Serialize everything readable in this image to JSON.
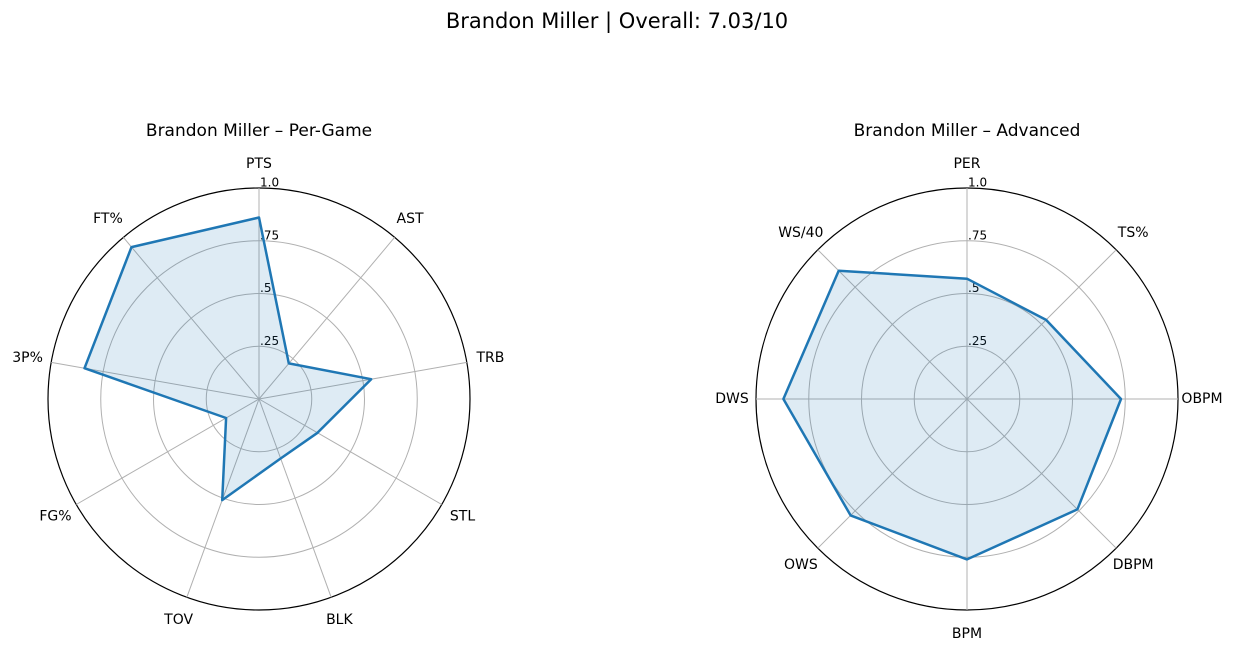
{
  "title": "Brandon Miller | Overall: 7.03/10",
  "chart_data": [
    {
      "type": "radar",
      "title": "Brandon Miller – Per-Game",
      "categories": [
        "PTS",
        "AST",
        "TRB",
        "STL",
        "BLK",
        "TOV",
        "FG%",
        "3P%",
        "FT%"
      ],
      "values": [
        0.86,
        0.22,
        0.54,
        0.32,
        0.3,
        0.51,
        0.18,
        0.84,
        0.94
      ],
      "color": "#1f77b4",
      "ylim": [
        0,
        1
      ],
      "yticks": [
        {
          "value": 0.25,
          "label": ".25"
        },
        {
          "value": 0.5,
          "label": ".5"
        },
        {
          "value": 0.75,
          "label": ".75"
        },
        {
          "value": 1.0,
          "label": "1.0"
        }
      ],
      "grid": true
    },
    {
      "type": "radar",
      "title": "Brandon Miller – Advanced",
      "categories": [
        "PER",
        "TS%",
        "OBPM",
        "DBPM",
        "BPM",
        "OWS",
        "DWS",
        "WS/40"
      ],
      "values": [
        0.57,
        0.53,
        0.73,
        0.74,
        0.76,
        0.78,
        0.87,
        0.86
      ],
      "color": "#1f77b4",
      "ylim": [
        0,
        1
      ],
      "yticks": [
        {
          "value": 0.25,
          "label": ".25"
        },
        {
          "value": 0.5,
          "label": ".5"
        },
        {
          "value": 0.75,
          "label": ".75"
        },
        {
          "value": 1.0,
          "label": "1.0"
        }
      ],
      "grid": true
    }
  ]
}
